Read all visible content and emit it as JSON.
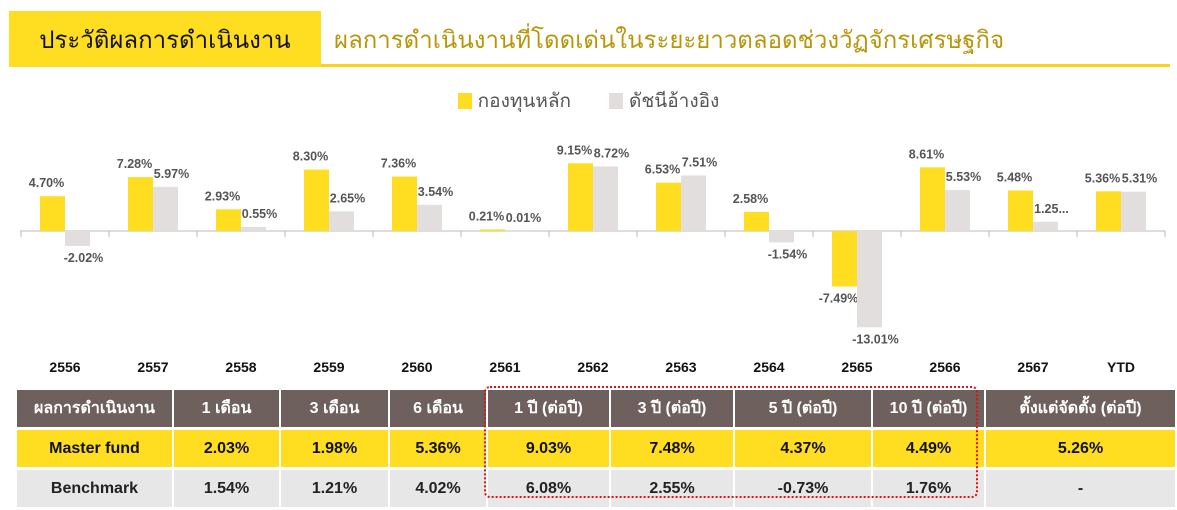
{
  "header": {
    "title": "ประวัติผลการดำเนินงาน",
    "subtitle": "ผลการดำเนินงานที่โดดเด่นในระยะยาวตลอดช่วงวัฏจักรเศรษฐกิจ"
  },
  "chart_data": {
    "type": "bar",
    "categories": [
      "2556",
      "2557",
      "2558",
      "2559",
      "2560",
      "2561",
      "2562",
      "2563",
      "2564",
      "2565",
      "2566",
      "2567",
      "YTD"
    ],
    "series": [
      {
        "name": "กองทุนหลัก",
        "color": "#FFDE21",
        "values": [
          4.7,
          7.28,
          2.93,
          8.3,
          7.36,
          0.21,
          9.15,
          6.53,
          2.58,
          -7.49,
          8.61,
          5.48,
          5.36
        ],
        "labels": [
          "4.70%",
          "7.28%",
          "2.93%",
          "8.30%",
          "7.36%",
          "0.21%",
          "9.15%",
          "6.53%",
          "2.58%",
          "-7.49%",
          "8.61%",
          "5.48%",
          "5.36%"
        ]
      },
      {
        "name": "ดัชนีอ้างอิง",
        "color": "#E2DEDE",
        "values": [
          -2.02,
          5.97,
          0.55,
          2.65,
          3.54,
          0.01,
          8.72,
          7.51,
          -1.54,
          -13.01,
          5.53,
          1.25,
          5.31
        ],
        "labels": [
          "-2.02%",
          "5.97%",
          "0.55%",
          "2.65%",
          "3.54%",
          "0.01%",
          "8.72%",
          "7.51%",
          "-1.54%",
          "-13.01%",
          "5.53%",
          "1.25...",
          "5.31%"
        ]
      }
    ],
    "legend": "top-center",
    "unit": "%"
  },
  "table": {
    "headers": [
      "ผลการดำเนินงาน",
      "1 เดือน",
      "3 เดือน",
      "6 เดือน",
      "1 ปี (ต่อปี)",
      "3 ปี (ต่อปี)",
      "5 ปี (ต่อปี)",
      "10 ปี (ต่อปี)",
      "ตั้งแต่จัดตั้ง (ต่อปี)"
    ],
    "rows": [
      [
        "Master fund",
        "2.03%",
        "1.98%",
        "5.36%",
        "9.03%",
        "7.48%",
        "4.37%",
        "4.49%",
        "5.26%"
      ],
      [
        "Benchmark",
        "1.54%",
        "1.21%",
        "4.02%",
        "6.08%",
        "2.55%",
        "-0.73%",
        "1.76%",
        "-"
      ]
    ]
  }
}
